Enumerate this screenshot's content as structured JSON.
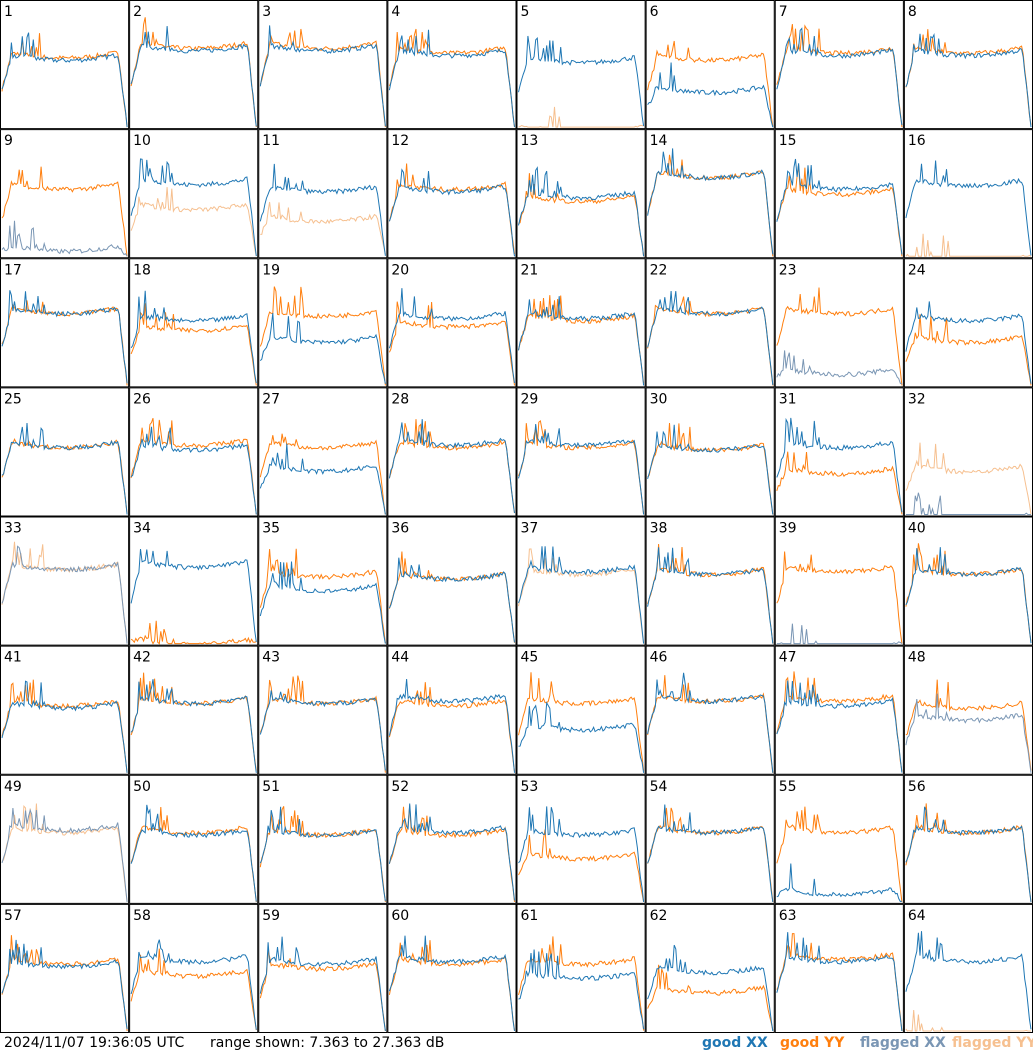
{
  "footer": {
    "timestamp": "2024/11/07 19:36:05 UTC",
    "range_text": "range shown: 7.363 to 27.363 dB"
  },
  "legend": [
    {
      "label": "good XX",
      "color": "#1f77b4"
    },
    {
      "label": "good YY",
      "color": "#ff7f0e"
    },
    {
      "label": "flagged XX",
      "color": "#7a96b4"
    },
    {
      "label": "flagged YY",
      "color": "#f6c090"
    }
  ],
  "chart_data": {
    "type": "line",
    "description_units": "dB",
    "ylim": [
      7.363,
      27.363
    ],
    "grid": {
      "rows": 8,
      "cols": 8
    },
    "series_names": [
      "good XX",
      "good YY",
      "flagged XX",
      "flagged YY"
    ],
    "panels": [
      {
        "id": "1",
        "xx": "good",
        "yy": "good",
        "xxLevel": 0.62,
        "yyLevel": 0.64
      },
      {
        "id": "2",
        "xx": "good",
        "yy": "good",
        "xxLevel": 0.7,
        "yyLevel": 0.72
      },
      {
        "id": "3",
        "xx": "good",
        "yy": "good",
        "xxLevel": 0.7,
        "yyLevel": 0.72
      },
      {
        "id": "4",
        "xx": "good",
        "yy": "good",
        "xxLevel": 0.66,
        "yyLevel": 0.68
      },
      {
        "id": "5",
        "xx": "good",
        "yy": "flagged",
        "xxLevel": 0.6,
        "yyLevel": 0.0
      },
      {
        "id": "6",
        "xx": "good",
        "yy": "good",
        "xxLevel": 0.35,
        "yyLevel": 0.62
      },
      {
        "id": "7",
        "xx": "good",
        "yy": "good",
        "xxLevel": 0.66,
        "yyLevel": 0.68
      },
      {
        "id": "8",
        "xx": "good",
        "yy": "good",
        "xxLevel": 0.66,
        "yyLevel": 0.68
      },
      {
        "id": "9",
        "xx": "flagged",
        "yy": "good",
        "xxLevel": 0.1,
        "yyLevel": 0.62
      },
      {
        "id": "10",
        "xx": "good",
        "yy": "flagged",
        "xxLevel": 0.66,
        "yyLevel": 0.45
      },
      {
        "id": "11",
        "xx": "good",
        "yy": "flagged",
        "xxLevel": 0.6,
        "yyLevel": 0.35
      },
      {
        "id": "12",
        "xx": "good",
        "yy": "good",
        "xxLevel": 0.6,
        "yyLevel": 0.62
      },
      {
        "id": "13",
        "xx": "good",
        "yy": "good",
        "xxLevel": 0.55,
        "yyLevel": 0.52
      },
      {
        "id": "14",
        "xx": "good",
        "yy": "good",
        "xxLevel": 0.72,
        "yyLevel": 0.72
      },
      {
        "id": "15",
        "xx": "good",
        "yy": "good",
        "xxLevel": 0.62,
        "yyLevel": 0.58
      },
      {
        "id": "16",
        "xx": "good",
        "yy": "flagged",
        "xxLevel": 0.65,
        "yyLevel": 0.0
      },
      {
        "id": "17",
        "xx": "good",
        "yy": "good",
        "xxLevel": 0.66,
        "yyLevel": 0.66
      },
      {
        "id": "18",
        "xx": "good",
        "yy": "good",
        "xxLevel": 0.6,
        "yyLevel": 0.52
      },
      {
        "id": "19",
        "xx": "good",
        "yy": "good",
        "xxLevel": 0.42,
        "yyLevel": 0.64
      },
      {
        "id": "20",
        "xx": "good",
        "yy": "good",
        "xxLevel": 0.62,
        "yyLevel": 0.55
      },
      {
        "id": "21",
        "xx": "good",
        "yy": "good",
        "xxLevel": 0.62,
        "yyLevel": 0.6
      },
      {
        "id": "22",
        "xx": "good",
        "yy": "good",
        "xxLevel": 0.66,
        "yyLevel": 0.66
      },
      {
        "id": "23",
        "xx": "flagged",
        "yy": "good",
        "xxLevel": 0.15,
        "yyLevel": 0.66
      },
      {
        "id": "24",
        "xx": "good",
        "yy": "good",
        "xxLevel": 0.6,
        "yyLevel": 0.42
      },
      {
        "id": "25",
        "xx": "good",
        "yy": "good",
        "xxLevel": 0.62,
        "yyLevel": 0.62
      },
      {
        "id": "26",
        "xx": "good",
        "yy": "good",
        "xxLevel": 0.6,
        "yyLevel": 0.64
      },
      {
        "id": "27",
        "xx": "good",
        "yy": "good",
        "xxLevel": 0.42,
        "yyLevel": 0.62
      },
      {
        "id": "28",
        "xx": "good",
        "yy": "good",
        "xxLevel": 0.64,
        "yyLevel": 0.62
      },
      {
        "id": "29",
        "xx": "good",
        "yy": "good",
        "xxLevel": 0.64,
        "yyLevel": 0.62
      },
      {
        "id": "30",
        "xx": "good",
        "yy": "good",
        "xxLevel": 0.6,
        "yyLevel": 0.6
      },
      {
        "id": "31",
        "xx": "good",
        "yy": "good",
        "xxLevel": 0.62,
        "yyLevel": 0.4
      },
      {
        "id": "32",
        "xx": "flagged",
        "yy": "flagged",
        "xxLevel": 0.0,
        "yyLevel": 0.42
      },
      {
        "id": "33",
        "xx": "flagged",
        "yy": "flagged",
        "xxLevel": 0.68,
        "yyLevel": 0.68
      },
      {
        "id": "34",
        "xx": "good",
        "yy": "good",
        "xxLevel": 0.7,
        "yyLevel": 0.05
      },
      {
        "id": "35",
        "xx": "good",
        "yy": "good",
        "xxLevel": 0.5,
        "yyLevel": 0.62
      },
      {
        "id": "36",
        "xx": "good",
        "yy": "good",
        "xxLevel": 0.6,
        "yyLevel": 0.6
      },
      {
        "id": "37",
        "xx": "good",
        "yy": "flagged",
        "xxLevel": 0.66,
        "yyLevel": 0.64
      },
      {
        "id": "38",
        "xx": "good",
        "yy": "good",
        "xxLevel": 0.64,
        "yyLevel": 0.64
      },
      {
        "id": "39",
        "xx": "flagged",
        "yy": "good",
        "xxLevel": 0.0,
        "yyLevel": 0.66
      },
      {
        "id": "40",
        "xx": "good",
        "yy": "good",
        "xxLevel": 0.64,
        "yyLevel": 0.64
      },
      {
        "id": "41",
        "xx": "good",
        "yy": "good",
        "xxLevel": 0.6,
        "yyLevel": 0.62
      },
      {
        "id": "42",
        "xx": "good",
        "yy": "good",
        "xxLevel": 0.64,
        "yyLevel": 0.64
      },
      {
        "id": "43",
        "xx": "good",
        "yy": "good",
        "xxLevel": 0.64,
        "yyLevel": 0.64
      },
      {
        "id": "44",
        "xx": "good",
        "yy": "good",
        "xxLevel": 0.66,
        "yyLevel": 0.62
      },
      {
        "id": "45",
        "xx": "good",
        "yy": "good",
        "xxLevel": 0.42,
        "yyLevel": 0.64
      },
      {
        "id": "46",
        "xx": "good",
        "yy": "good",
        "xxLevel": 0.66,
        "yyLevel": 0.66
      },
      {
        "id": "47",
        "xx": "good",
        "yy": "good",
        "xxLevel": 0.62,
        "yyLevel": 0.66
      },
      {
        "id": "48",
        "xx": "flagged",
        "yy": "good",
        "xxLevel": 0.5,
        "yyLevel": 0.6
      },
      {
        "id": "49",
        "xx": "flagged",
        "yy": "flagged",
        "xxLevel": 0.66,
        "yyLevel": 0.64
      },
      {
        "id": "50",
        "xx": "good",
        "yy": "good",
        "xxLevel": 0.62,
        "yyLevel": 0.64
      },
      {
        "id": "51",
        "xx": "good",
        "yy": "good",
        "xxLevel": 0.62,
        "yyLevel": 0.62
      },
      {
        "id": "52",
        "xx": "good",
        "yy": "good",
        "xxLevel": 0.64,
        "yyLevel": 0.62
      },
      {
        "id": "53",
        "xx": "good",
        "yy": "good",
        "xxLevel": 0.62,
        "yyLevel": 0.42
      },
      {
        "id": "54",
        "xx": "good",
        "yy": "good",
        "xxLevel": 0.64,
        "yyLevel": 0.64
      },
      {
        "id": "55",
        "xx": "good",
        "yy": "good",
        "xxLevel": 0.12,
        "yyLevel": 0.64
      },
      {
        "id": "56",
        "xx": "good",
        "yy": "good",
        "xxLevel": 0.64,
        "yyLevel": 0.64
      },
      {
        "id": "57",
        "xx": "good",
        "yy": "good",
        "xxLevel": 0.6,
        "yyLevel": 0.62
      },
      {
        "id": "58",
        "xx": "good",
        "yy": "good",
        "xxLevel": 0.64,
        "yyLevel": 0.52
      },
      {
        "id": "59",
        "xx": "good",
        "yy": "good",
        "xxLevel": 0.62,
        "yyLevel": 0.58
      },
      {
        "id": "60",
        "xx": "good",
        "yy": "good",
        "xxLevel": 0.64,
        "yyLevel": 0.62
      },
      {
        "id": "61",
        "xx": "good",
        "yy": "good",
        "xxLevel": 0.5,
        "yyLevel": 0.62
      },
      {
        "id": "62",
        "xx": "good",
        "yy": "good",
        "xxLevel": 0.55,
        "yyLevel": 0.38
      },
      {
        "id": "63",
        "xx": "good",
        "yy": "good",
        "xxLevel": 0.64,
        "yyLevel": 0.66
      },
      {
        "id": "64",
        "xx": "good",
        "yy": "flagged",
        "xxLevel": 0.64,
        "yyLevel": 0.0
      }
    ]
  }
}
